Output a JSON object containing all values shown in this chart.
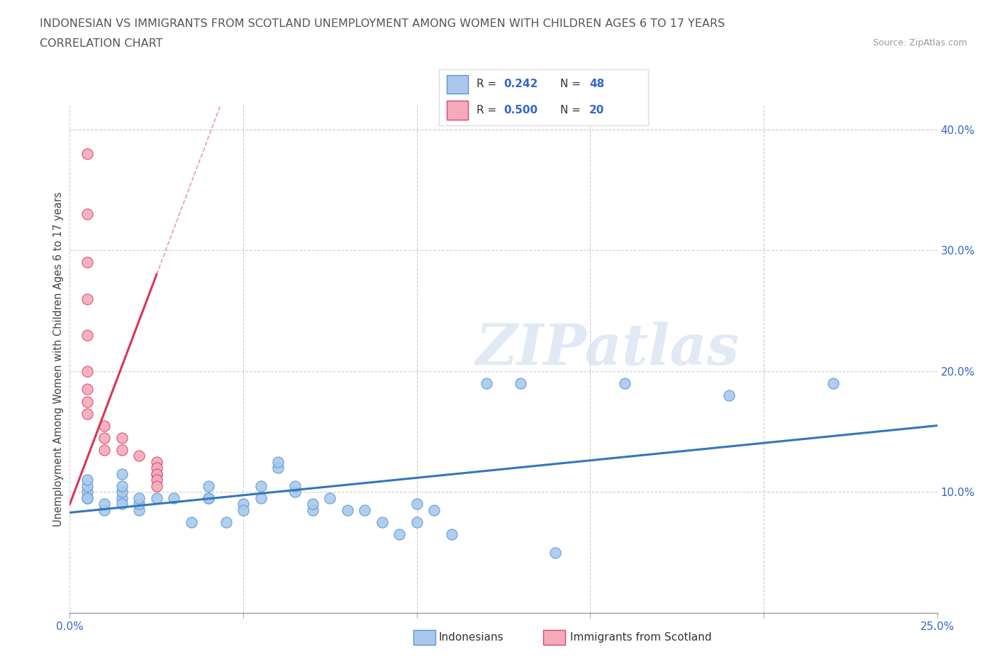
{
  "title_line1": "INDONESIAN VS IMMIGRANTS FROM SCOTLAND UNEMPLOYMENT AMONG WOMEN WITH CHILDREN AGES 6 TO 17 YEARS",
  "title_line2": "CORRELATION CHART",
  "source_text": "Source: ZipAtlas.com",
  "ylabel": "Unemployment Among Women with Children Ages 6 to 17 years",
  "xlim": [
    0.0,
    0.25
  ],
  "ylim": [
    0.0,
    0.42
  ],
  "xticks": [
    0.0,
    0.05,
    0.1,
    0.15,
    0.2,
    0.25
  ],
  "yticks_right": [
    0.1,
    0.2,
    0.3,
    0.4
  ],
  "ytick_right_labels": [
    "10.0%",
    "20.0%",
    "30.0%",
    "40.0%"
  ],
  "watermark": "ZIPatlas",
  "legend_r_blue": "0.242",
  "legend_n_blue": "48",
  "legend_r_pink": "0.500",
  "legend_n_pink": "20",
  "blue_dot_color": "#aac8ee",
  "blue_edge_color": "#5599cc",
  "pink_dot_color": "#f4aabb",
  "pink_edge_color": "#dd4466",
  "blue_line_color": "#3377bb",
  "pink_line_color": "#dd3355",
  "grid_color": "#cccccc",
  "indonesian_x": [
    0.005,
    0.005,
    0.005,
    0.005,
    0.005,
    0.01,
    0.01,
    0.015,
    0.015,
    0.015,
    0.015,
    0.015,
    0.02,
    0.02,
    0.02,
    0.025,
    0.025,
    0.03,
    0.035,
    0.04,
    0.04,
    0.04,
    0.045,
    0.05,
    0.05,
    0.055,
    0.055,
    0.06,
    0.06,
    0.065,
    0.065,
    0.07,
    0.07,
    0.075,
    0.08,
    0.085,
    0.09,
    0.095,
    0.1,
    0.1,
    0.105,
    0.11,
    0.12,
    0.13,
    0.14,
    0.16,
    0.19,
    0.22
  ],
  "indonesian_y": [
    0.095,
    0.1,
    0.105,
    0.11,
    0.095,
    0.085,
    0.09,
    0.095,
    0.09,
    0.1,
    0.105,
    0.115,
    0.085,
    0.09,
    0.095,
    0.095,
    0.115,
    0.095,
    0.075,
    0.095,
    0.105,
    0.095,
    0.075,
    0.09,
    0.085,
    0.095,
    0.105,
    0.12,
    0.125,
    0.1,
    0.105,
    0.085,
    0.09,
    0.095,
    0.085,
    0.085,
    0.075,
    0.065,
    0.09,
    0.075,
    0.085,
    0.065,
    0.19,
    0.19,
    0.05,
    0.19,
    0.18,
    0.19
  ],
  "scotland_x": [
    0.005,
    0.005,
    0.005,
    0.005,
    0.005,
    0.005,
    0.005,
    0.005,
    0.005,
    0.01,
    0.01,
    0.01,
    0.015,
    0.015,
    0.02,
    0.025,
    0.025,
    0.025,
    0.025,
    0.025
  ],
  "scotland_y": [
    0.38,
    0.33,
    0.29,
    0.26,
    0.23,
    0.2,
    0.185,
    0.175,
    0.165,
    0.155,
    0.145,
    0.135,
    0.145,
    0.135,
    0.13,
    0.125,
    0.12,
    0.115,
    0.11,
    0.105
  ],
  "pink_line_x0": 0.0,
  "pink_line_y0": 0.09,
  "pink_line_x1": 0.025,
  "pink_line_y1": 0.28,
  "blue_line_x0": 0.0,
  "blue_line_y0": 0.083,
  "blue_line_x1": 0.25,
  "blue_line_y1": 0.155
}
